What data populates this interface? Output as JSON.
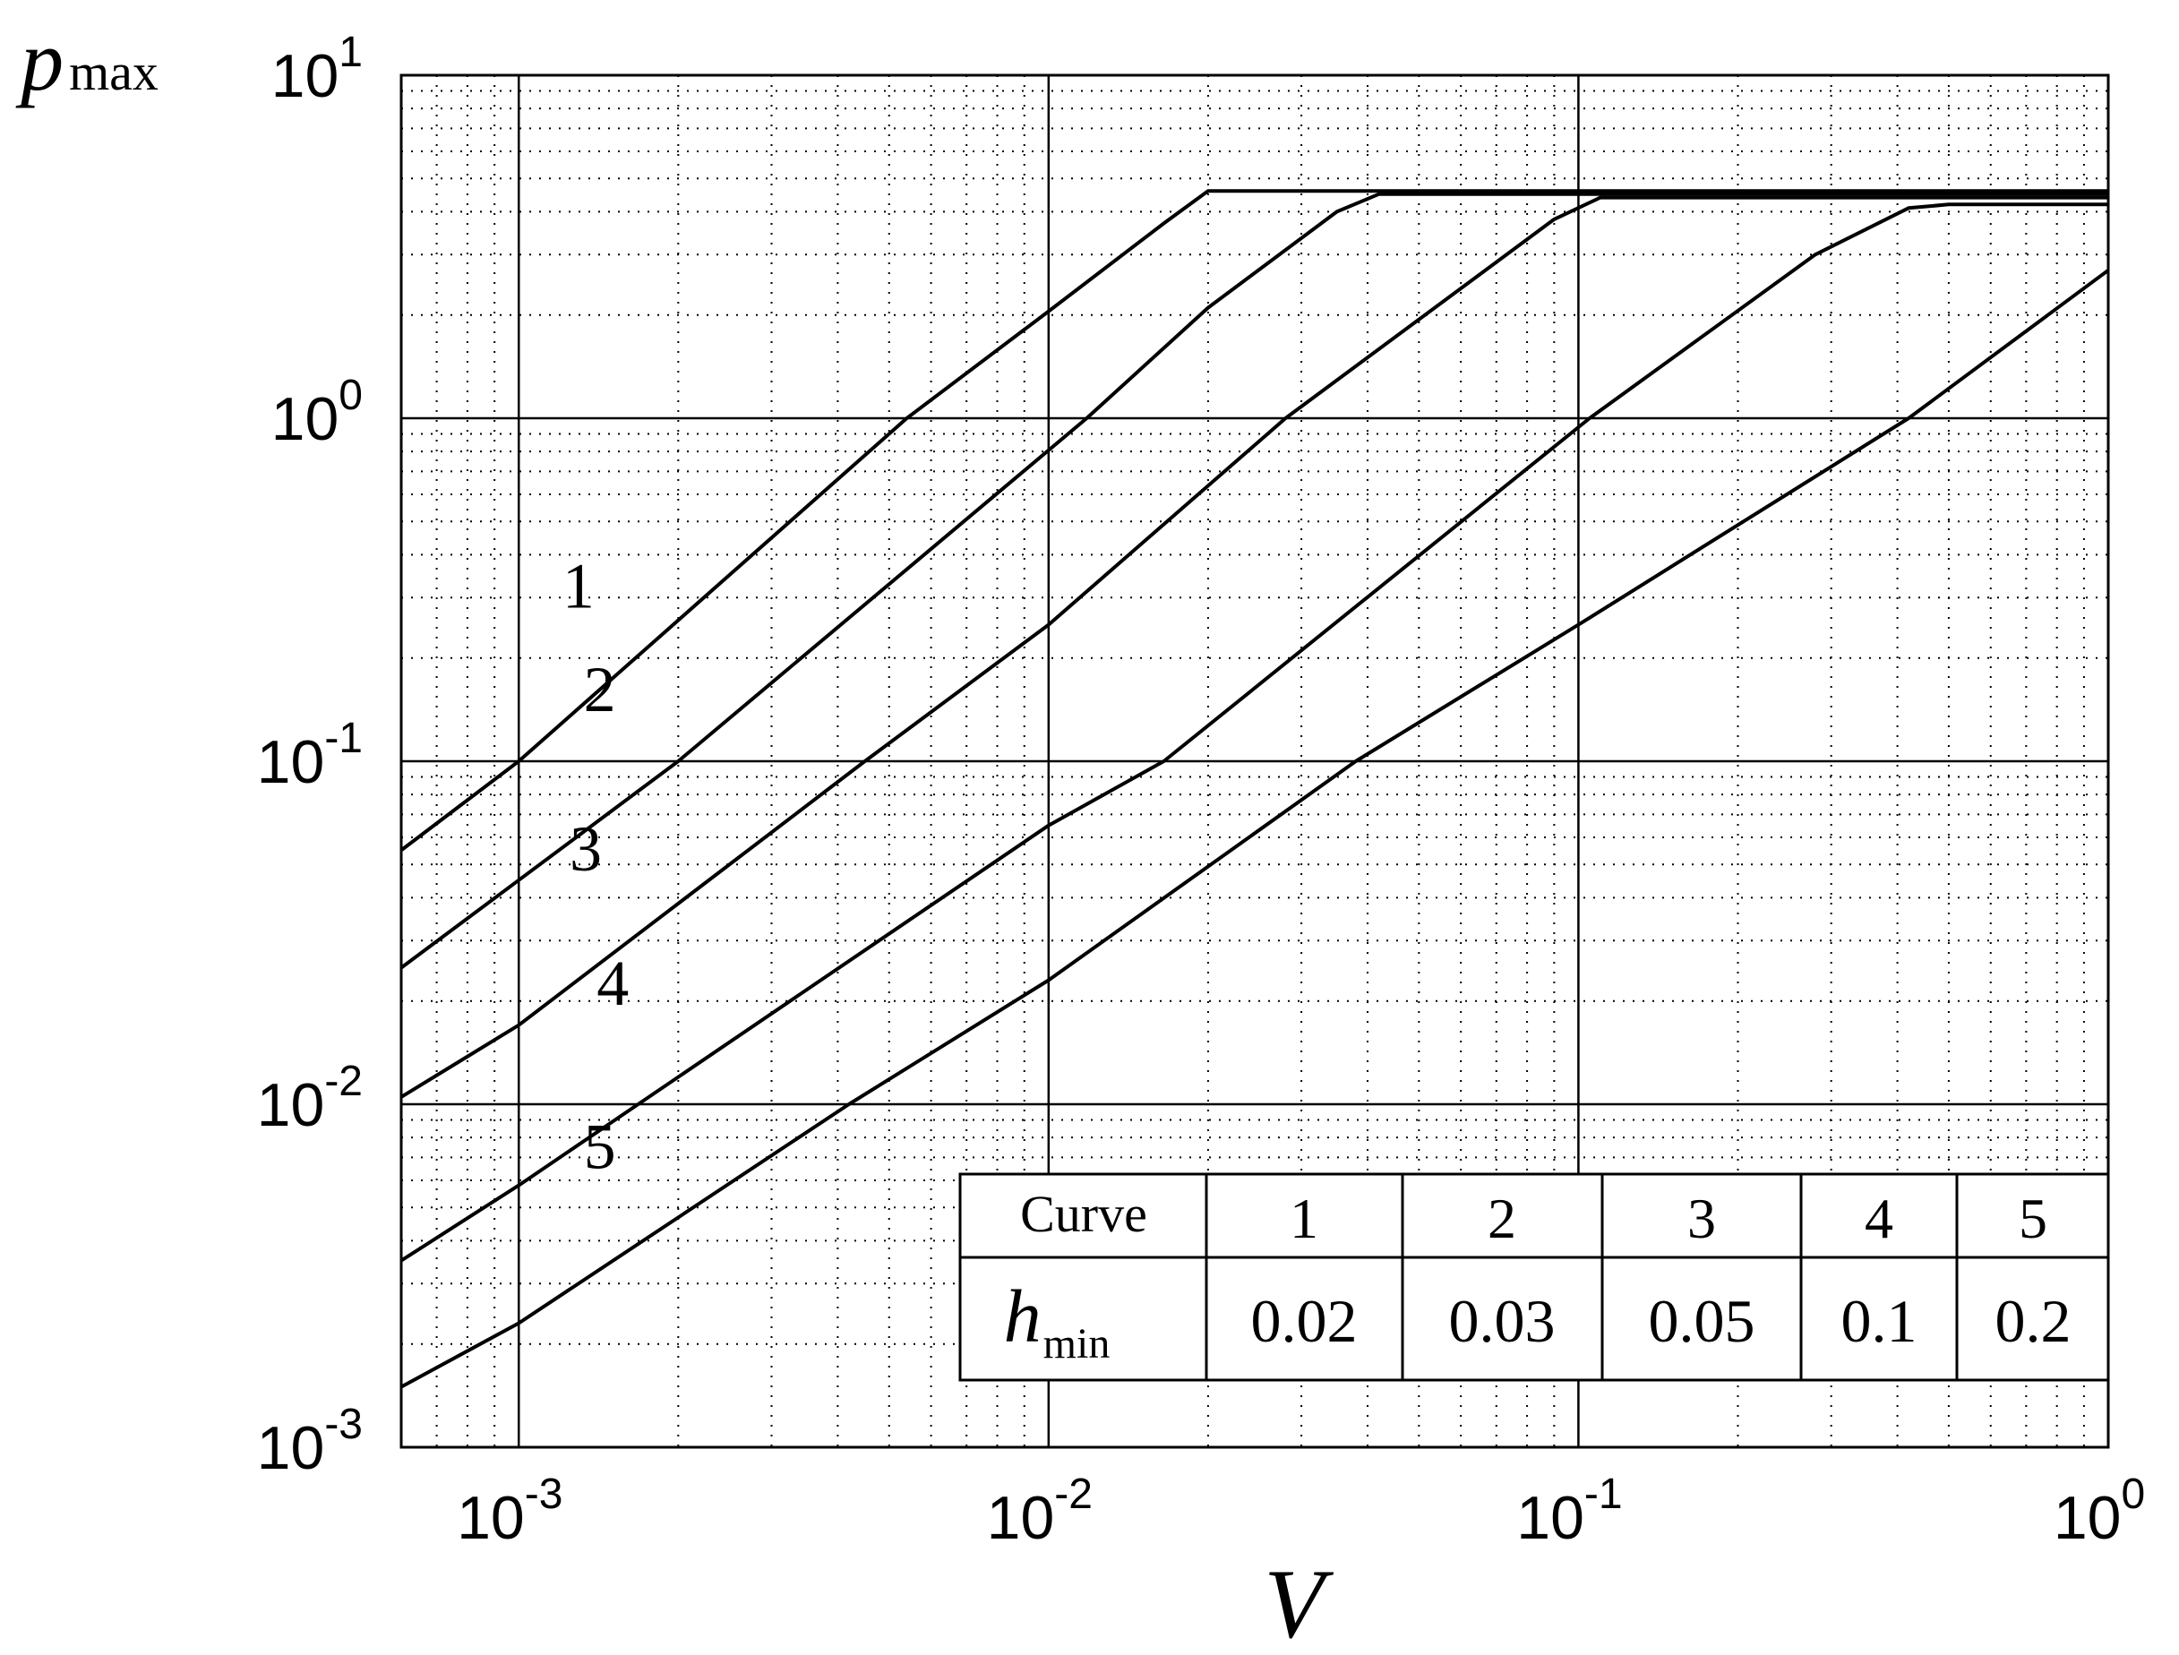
{
  "chart_data": {
    "type": "line",
    "title": "",
    "xlabel": "V",
    "ylabel": {
      "main": "p",
      "sub": "max"
    },
    "xscale": "log",
    "yscale": "log",
    "xlim": [
      0.0006,
      1
    ],
    "ylim": [
      0.001,
      10
    ],
    "grid": true,
    "x_ticks": [
      {
        "value": 0.001,
        "base": "10",
        "exp": "-3"
      },
      {
        "value": 0.01,
        "base": "10",
        "exp": "-2"
      },
      {
        "value": 0.1,
        "base": "10",
        "exp": "-1"
      },
      {
        "value": 1,
        "base": "10",
        "exp": "0"
      }
    ],
    "y_ticks": [
      {
        "value": 0.001,
        "base": "10",
        "exp": "-3"
      },
      {
        "value": 0.01,
        "base": "10",
        "exp": "-2"
      },
      {
        "value": 0.1,
        "base": "10",
        "exp": "-1"
      },
      {
        "value": 1,
        "base": "10",
        "exp": "0"
      },
      {
        "value": 10,
        "base": "10",
        "exp": "1"
      }
    ],
    "series": [
      {
        "name": "1",
        "x": [
          0.0006,
          0.001,
          0.0054,
          0.01,
          0.0165,
          0.02,
          1
        ],
        "y": [
          0.055,
          0.1,
          1.0,
          2.05,
          3.7,
          4.6,
          4.6
        ]
      },
      {
        "name": "2",
        "x": [
          0.0006,
          0.001,
          0.002,
          0.0118,
          0.02,
          0.035,
          0.042,
          1
        ],
        "y": [
          0.025,
          0.045,
          0.1,
          1.0,
          2.1,
          4.0,
          4.5,
          4.5
        ]
      },
      {
        "name": "3",
        "x": [
          0.0006,
          0.001,
          0.0045,
          0.01,
          0.028,
          0.09,
          0.11,
          1
        ],
        "y": [
          0.0105,
          0.017,
          0.1,
          0.25,
          1.0,
          3.8,
          4.4,
          4.4
        ]
      },
      {
        "name": "4",
        "x": [
          0.0006,
          0.001,
          0.01,
          0.0165,
          0.105,
          0.28,
          0.42,
          0.5,
          1
        ],
        "y": [
          0.0035,
          0.0058,
          0.065,
          0.1,
          1.0,
          3.0,
          4.1,
          4.2,
          4.2
        ]
      },
      {
        "name": "5",
        "x": [
          0.0006,
          0.001,
          0.0042,
          0.01,
          0.038,
          0.1,
          0.42,
          1
        ],
        "y": [
          0.0015,
          0.0023,
          0.01,
          0.023,
          0.1,
          0.25,
          1.0,
          2.7
        ]
      }
    ],
    "table": {
      "row1_header": "Curve",
      "row2_header": {
        "main": "h",
        "sub": "min"
      },
      "curves": [
        "1",
        "2",
        "3",
        "4",
        "5"
      ],
      "h_min": [
        "0.02",
        "0.03",
        "0.05",
        "0.1",
        "0.2"
      ]
    }
  }
}
